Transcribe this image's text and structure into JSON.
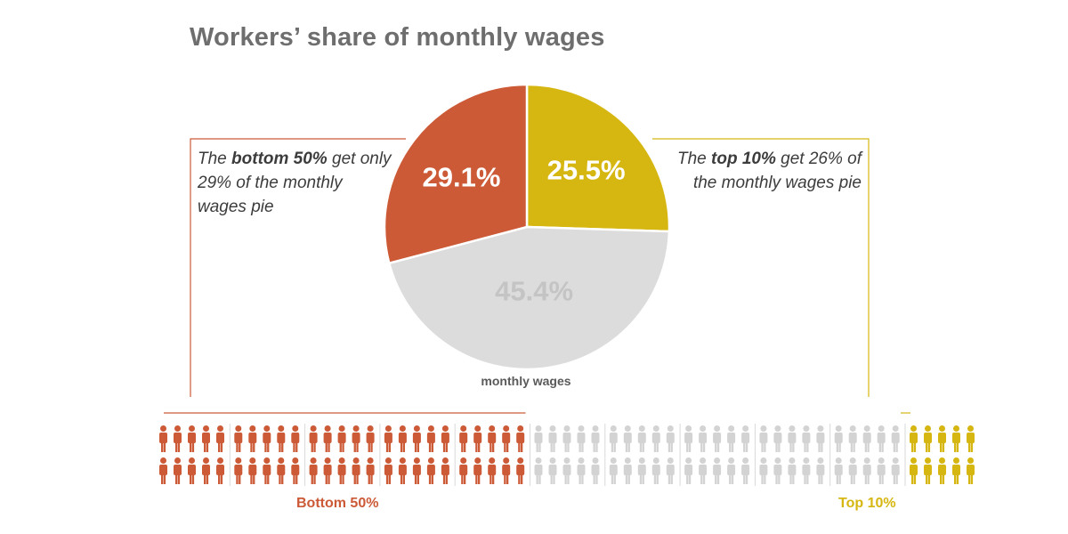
{
  "chart_data": {
    "type": "pie",
    "title": "Workers’ share of monthly wages",
    "slices": [
      {
        "label": "29.1%",
        "value": 29.1,
        "color": "#cc5a37",
        "label_color": "#ffffff"
      },
      {
        "label": "25.5%",
        "value": 25.5,
        "color": "#d6b711",
        "label_color": "#ffffff"
      },
      {
        "label": "45.4%",
        "value": 45.4,
        "color": "#dcdcdc",
        "label_color": "#c4c4c4"
      }
    ],
    "pie_caption": "monthly wages",
    "annotations": {
      "left": {
        "pre": "The ",
        "bold": "bottom 50%",
        "post": " get only 29% of the monthly wages pie"
      },
      "right": {
        "pre": "The ",
        "bold": "top 10%",
        "post": " get 26% of the monthly wages pie"
      }
    },
    "people": {
      "groups": 11,
      "icon": "person-icon",
      "segments": [
        {
          "label": "Bottom 50%",
          "groups": 5,
          "color": "#cc5a37"
        },
        {
          "label": "",
          "groups": 5,
          "color": "#d3d3d3"
        },
        {
          "label": "Top 10%",
          "groups": 1,
          "color": "#d6b711"
        }
      ]
    }
  }
}
